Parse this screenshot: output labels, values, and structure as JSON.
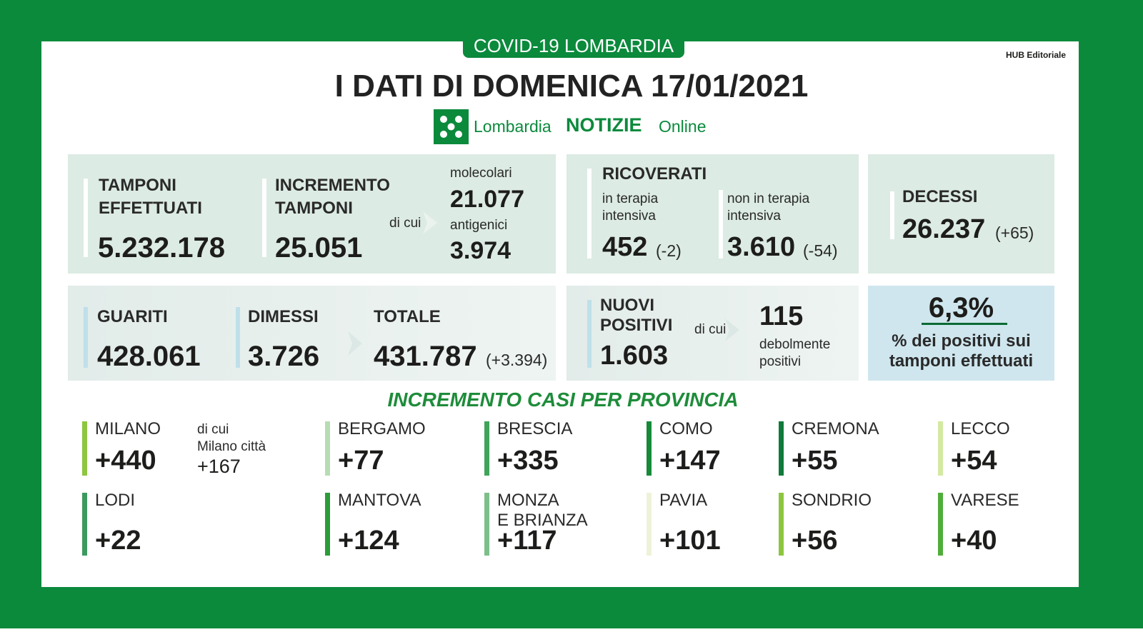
{
  "header": {
    "badge": "COVID-19 LOMBARDIA",
    "title": "I DATI DI DOMENICA 17/01/2021",
    "brand_prefix": "Lombardia",
    "brand_main": "NOTIZIE",
    "brand_suffix": "Online",
    "credit": "HUB Editoriale"
  },
  "tests": {
    "label": "TAMPONI\nEFFETTUATI",
    "value": "5.232.178"
  },
  "increment": {
    "label": "INCREMENTO\nTAMPONI",
    "value": "25.051",
    "of_which": "di cui",
    "molecular_label": "molecolari",
    "molecular_value": "21.077",
    "antigen_label": "antigenici",
    "antigen_value": "3.974"
  },
  "hospitalized": {
    "title": "RICOVERATI",
    "icu_label": "in terapia\nintensiva",
    "icu_value": "452",
    "icu_change": "(-2)",
    "non_icu_label": "non in terapia\nintensiva",
    "non_icu_value": "3.610",
    "non_icu_change": "(-54)"
  },
  "deaths": {
    "label": "DECESSI",
    "value": "26.237",
    "change": "(+65)"
  },
  "recovered": {
    "healed_label": "GUARITI",
    "healed_value": "428.061",
    "discharged_label": "DIMESSI",
    "discharged_value": "3.726",
    "total_label": "TOTALE",
    "total_value": "431.787",
    "total_change": "(+3.394)"
  },
  "new_positives": {
    "label": "NUOVI\nPOSITIVI",
    "value": "1.603",
    "of_which": "di cui",
    "weak_value": "115",
    "weak_label": "debolmente\npositivi"
  },
  "positivity": {
    "value": "6,3%",
    "label": "% dei positivi sui\ntamponi effettuati"
  },
  "provinces": {
    "title": "INCREMENTO CASI PER PROVINCIA",
    "milano_note": {
      "label": "di cui\nMilano città",
      "value": "+167"
    },
    "items": [
      {
        "name": "MILANO",
        "value": "+440",
        "color": "#8dc63f"
      },
      {
        "name": "BERGAMO",
        "value": "+77",
        "color": "#b7dcb4"
      },
      {
        "name": "BRESCIA",
        "value": "+335",
        "color": "#3fa55a"
      },
      {
        "name": "COMO",
        "value": "+147",
        "color": "#178a3a"
      },
      {
        "name": "CREMONA",
        "value": "+55",
        "color": "#0f7a3a"
      },
      {
        "name": "LECCO",
        "value": "+54",
        "color": "#d3e9a2"
      },
      {
        "name": "LODI",
        "value": "+22",
        "color": "#3c9a5f"
      },
      {
        "name": "MANTOVA",
        "value": "+124",
        "color": "#2d9b3a"
      },
      {
        "name": "MONZA\nE BRIANZA",
        "value": "+117",
        "color": "#7dbf8a"
      },
      {
        "name": "PAVIA",
        "value": "+101",
        "color": "#eef3d8"
      },
      {
        "name": "SONDRIO",
        "value": "+56",
        "color": "#8cc63f"
      },
      {
        "name": "VARESE",
        "value": "+40",
        "color": "#4fae3a"
      }
    ]
  }
}
